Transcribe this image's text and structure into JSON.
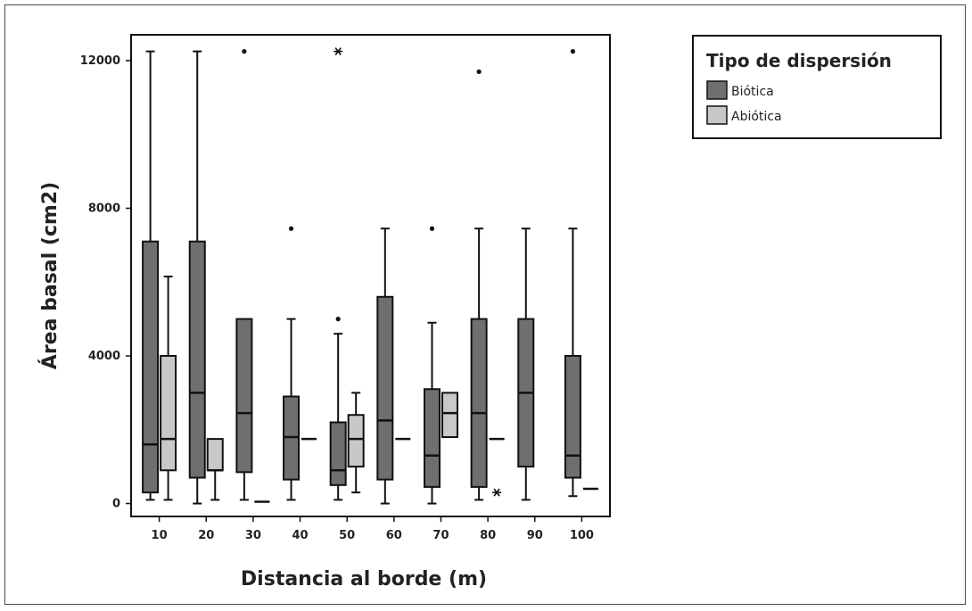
{
  "chart_data": {
    "type": "boxplot",
    "xlabel": "Distancia al borde (m)",
    "ylabel": "Área basal (cm2)",
    "ylim": [
      -350,
      12700
    ],
    "yticks": [
      0,
      4000,
      8000,
      12000
    ],
    "categories": [
      "10",
      "20",
      "30",
      "40",
      "50",
      "60",
      "70",
      "80",
      "90",
      "100"
    ],
    "legend": {
      "title": "Tipo de dispersión",
      "position": "right",
      "entries": [
        {
          "label": "Biótica",
          "color": "#6f6f6f"
        },
        {
          "label": "Abiótica",
          "color": "#c8c8c8"
        }
      ]
    },
    "series": [
      {
        "name": "Biótica",
        "color": "#6f6f6f",
        "boxes": [
          {
            "category": "10",
            "min": 100,
            "q1": 300,
            "median": 1600,
            "q3": 7100,
            "max": 12250,
            "outliers": [],
            "extremes": []
          },
          {
            "category": "20",
            "min": 0,
            "q1": 700,
            "median": 3000,
            "q3": 7100,
            "max": 12250,
            "outliers": [],
            "extremes": []
          },
          {
            "category": "30",
            "min": 100,
            "q1": 850,
            "median": 2450,
            "q3": 5000,
            "max": 5000,
            "outliers": [
              12250
            ],
            "extremes": []
          },
          {
            "category": "40",
            "min": 100,
            "q1": 650,
            "median": 1800,
            "q3": 2900,
            "max": 5000,
            "outliers": [
              7450
            ],
            "extremes": []
          },
          {
            "category": "50",
            "min": 100,
            "q1": 500,
            "median": 900,
            "q3": 2200,
            "max": 4600,
            "outliers": [
              5000
            ],
            "extremes": [
              12250
            ]
          },
          {
            "category": "60",
            "min": 0,
            "q1": 650,
            "median": 2250,
            "q3": 5600,
            "max": 7450,
            "outliers": [],
            "extremes": []
          },
          {
            "category": "70",
            "min": 0,
            "q1": 450,
            "median": 1300,
            "q3": 3100,
            "max": 4900,
            "outliers": [
              7450
            ],
            "extremes": []
          },
          {
            "category": "80",
            "min": 100,
            "q1": 450,
            "median": 2450,
            "q3": 5000,
            "max": 7450,
            "outliers": [
              11700
            ],
            "extremes": []
          },
          {
            "category": "90",
            "min": 100,
            "q1": 1000,
            "median": 3000,
            "q3": 5000,
            "max": 7450,
            "outliers": [],
            "extremes": []
          },
          {
            "category": "100",
            "min": 200,
            "q1": 700,
            "median": 1300,
            "q3": 4000,
            "max": 7450,
            "outliers": [
              12250
            ],
            "extremes": []
          }
        ]
      },
      {
        "name": "Abiótica",
        "color": "#c8c8c8",
        "boxes": [
          {
            "category": "10",
            "min": 100,
            "q1": 900,
            "median": 1750,
            "q3": 4000,
            "max": 6150,
            "outliers": [],
            "extremes": []
          },
          {
            "category": "20",
            "min": 100,
            "q1": 900,
            "median": 900,
            "q3": 1750,
            "max": 1750,
            "outliers": [],
            "extremes": []
          },
          {
            "category": "30",
            "min": 50,
            "q1": 50,
            "median": 50,
            "q3": 50,
            "max": 50,
            "outliers": [],
            "extremes": []
          },
          {
            "category": "40",
            "min": 1750,
            "q1": 1750,
            "median": 1750,
            "q3": 1750,
            "max": 1750,
            "outliers": [],
            "extremes": []
          },
          {
            "category": "50",
            "min": 300,
            "q1": 1000,
            "median": 1750,
            "q3": 2400,
            "max": 3000,
            "outliers": [],
            "extremes": []
          },
          {
            "category": "60",
            "min": 1750,
            "q1": 1750,
            "median": 1750,
            "q3": 1750,
            "max": 1750,
            "outliers": [],
            "extremes": []
          },
          {
            "category": "70",
            "min": 1800,
            "q1": 1800,
            "median": 2450,
            "q3": 3000,
            "max": 3000,
            "outliers": [],
            "extremes": []
          },
          {
            "category": "80",
            "min": 1750,
            "q1": 1750,
            "median": 1750,
            "q3": 1750,
            "max": 1750,
            "outliers": [],
            "extremes": [
              300
            ]
          },
          {
            "category": "90",
            "min": null,
            "q1": null,
            "median": null,
            "q3": null,
            "max": null,
            "outliers": [],
            "extremes": []
          },
          {
            "category": "100",
            "min": 400,
            "q1": 400,
            "median": 400,
            "q3": 400,
            "max": 400,
            "outliers": [],
            "extremes": []
          }
        ]
      }
    ]
  }
}
